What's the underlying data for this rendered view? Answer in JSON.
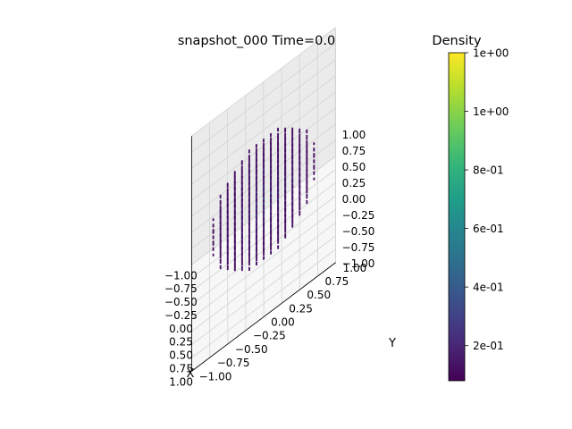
{
  "chart_data": {
    "type": "scatter",
    "projection": "3d",
    "title": "snapshot_000  Time=0.0",
    "xlabel": "X",
    "ylabel": "Y",
    "zlabel": "",
    "xlim": [
      -1.0,
      1.0
    ],
    "ylim": [
      -1.0,
      1.0
    ],
    "zlim": [
      -1.0,
      1.0
    ],
    "xticks": [
      "−1.00",
      "−0.75",
      "−0.50",
      "−0.25",
      "0.00",
      "0.25",
      "0.50",
      "0.75",
      "1.00"
    ],
    "yticks": [
      "−1.00",
      "−0.75",
      "−0.50",
      "−0.25",
      "0.00",
      "0.25",
      "0.50",
      "0.75",
      "1.00"
    ],
    "zticks": [
      "−1.00",
      "−0.75",
      "−0.50",
      "−0.25",
      "0.00",
      "0.25",
      "0.50",
      "0.75",
      "1.00"
    ],
    "grid": true,
    "points": {
      "shape": "sphere",
      "center": [
        0,
        0,
        0
      ],
      "radius": 0.75,
      "lattice_spacing": 0.1,
      "density_outer": 0.12,
      "density_center": 0.45
    },
    "colorbar": {
      "label": "Density",
      "colormap": "viridis",
      "range": [
        0.08,
        1.2
      ],
      "ticks": [
        {
          "value": 0.2,
          "label": "2e-01"
        },
        {
          "value": 0.4,
          "label": "4e-01"
        },
        {
          "value": 0.6,
          "label": "6e-01"
        },
        {
          "value": 0.8,
          "label": "8e-01"
        },
        {
          "value": 1.0,
          "label": "1e+00"
        },
        {
          "value": 1.2,
          "label": "1e+00"
        }
      ]
    },
    "colors": {
      "pane_x": "#ebebeb",
      "pane_y": "#f2f2f2",
      "pane_z": "#f7f7f7",
      "grid": "#d4d4d4",
      "axis_line": "#000000"
    }
  }
}
